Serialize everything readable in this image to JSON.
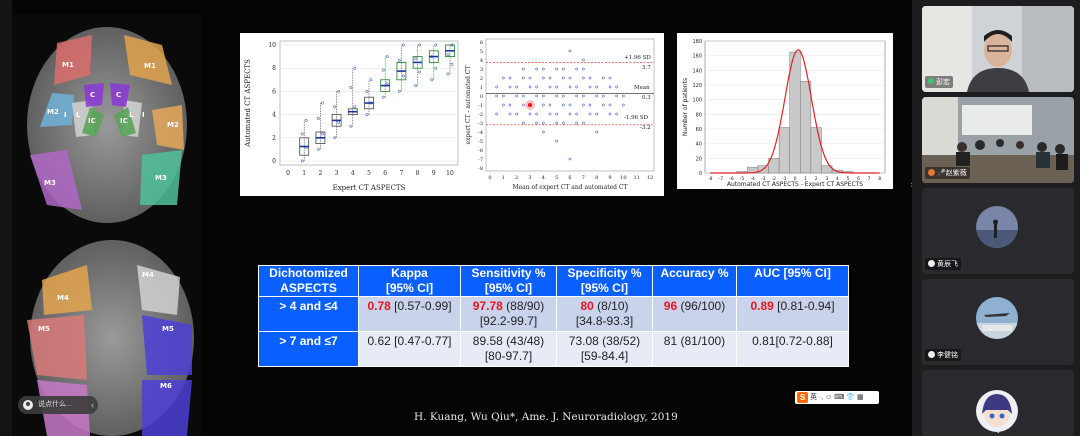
{
  "brain": {
    "labels": [
      "M1",
      "M2",
      "M3",
      "M1",
      "M2",
      "M3",
      "C",
      "C",
      "IC",
      "IC",
      "L",
      "L",
      "I",
      "I",
      "M4",
      "M4",
      "M5",
      "M5",
      "M6"
    ]
  },
  "chat": {
    "icon": "chat-bubble-icon",
    "text": "说点什么...",
    "arrow": "chevron-left-icon"
  },
  "fig1": {
    "xlabel": "Expert CT ASPECTS",
    "ylabel": "Automated CT ASPECTS",
    "xticks": [
      "0",
      "1",
      "2",
      "3",
      "4",
      "5",
      "6",
      "7",
      "8",
      "9",
      "10"
    ],
    "yticks": [
      "0",
      "2",
      "4",
      "6",
      "8",
      "10"
    ],
    "ylim": [
      0,
      10
    ]
  },
  "fig2": {
    "xlabel": "Mean of expert CT and automated CT",
    "ylabel": "expert CT - automated CT",
    "xticks": [
      "0",
      "1",
      "2",
      "3",
      "4",
      "5",
      "6",
      "7",
      "8",
      "9",
      "10",
      "11",
      "12"
    ],
    "yticks": [
      "6",
      "5",
      "4",
      "3",
      "2",
      "1",
      "0",
      "-1",
      "-2",
      "-3",
      "-4",
      "-5",
      "-6",
      "-7",
      "-8"
    ],
    "upper_label": "+1.96 SD",
    "upper_value": "3.7",
    "mean_label": "Mean",
    "mean_value": "0.3",
    "lower_label": "-1.96 SD",
    "lower_value": "-3.2"
  },
  "fig3": {
    "xlabel": "Automated CT ASPECTS - Expert CT ASPECTS",
    "ylabel": "Number of patients",
    "yticks": [
      "0",
      "20",
      "40",
      "60",
      "80",
      "100",
      "120",
      "140",
      "160",
      "180"
    ],
    "xticks": [
      "-8",
      "-7",
      "-6",
      "-5",
      "-4",
      "-3",
      "-2",
      "-1",
      "0",
      "1",
      "2",
      "3",
      "4",
      "5",
      "6",
      "7",
      "8"
    ],
    "chart_data": {
      "type": "bar",
      "categories": [
        "-5",
        "-4",
        "-3",
        "-2",
        "-1",
        "0",
        "1",
        "2",
        "3",
        "4",
        "5"
      ],
      "values": [
        2,
        8,
        10,
        20,
        62,
        165,
        125,
        62,
        10,
        4,
        2
      ],
      "ylim": [
        0,
        180
      ]
    }
  },
  "table": {
    "headers": [
      [
        "Dichotomized",
        "ASPECTS"
      ],
      [
        "Kappa",
        "[95% CI]"
      ],
      [
        "Sensitivity %",
        "[95% CI]"
      ],
      [
        "Specificity %",
        "[95% CI]"
      ],
      [
        "Accuracy %",
        ""
      ],
      [
        "AUC [95% CI]",
        ""
      ]
    ],
    "row1": {
      "label": "> 4 and ≤4",
      "kappa_v": "0.78",
      "kappa_ci": " [0.57-0.99]",
      "sens_v": "97.78",
      "sens_n": " (88/90)",
      "sens_ci": "[92.2-99.7]",
      "spec_v": "80",
      "spec_n": " (8/10)",
      "spec_ci": "[34.8-93.3]",
      "acc_v": "96",
      "acc_n": " (96/100)",
      "auc_v": "0.89",
      "auc_ci": " [0.81-0.94]"
    },
    "row2": {
      "label": "> 7 and ≤7",
      "kappa": "0.62 [0.47-0.77]",
      "sens": "89.58 (43/48)",
      "sens_ci": "[80-97.7]",
      "spec": "73.08 (38/52)",
      "spec_ci": "[59-84.4]",
      "acc": "81 (81/100)",
      "auc": "0.81[0.72-0.88]"
    }
  },
  "ime": {
    "logo": "S",
    "text": "英 ·, ☺ ⌨ 👕 ▦"
  },
  "citation": "H. Kuang, Wu Qiu*, Ame. J. Neuroradiology, 2019",
  "participants": [
    {
      "name": "彭宏",
      "icon": "microphone-icon"
    },
    {
      "name": "赵紫薇",
      "icon": "microphone-icon"
    },
    {
      "name": "黄辰飞",
      "icon": "user-avatar-icon"
    },
    {
      "name": "李健铭",
      "icon": "user-avatar-icon"
    }
  ],
  "colors": {
    "header": "#0a5fff",
    "red": "#e8141e",
    "row1": "#cad3ec",
    "row2": "#e6ebf6"
  }
}
